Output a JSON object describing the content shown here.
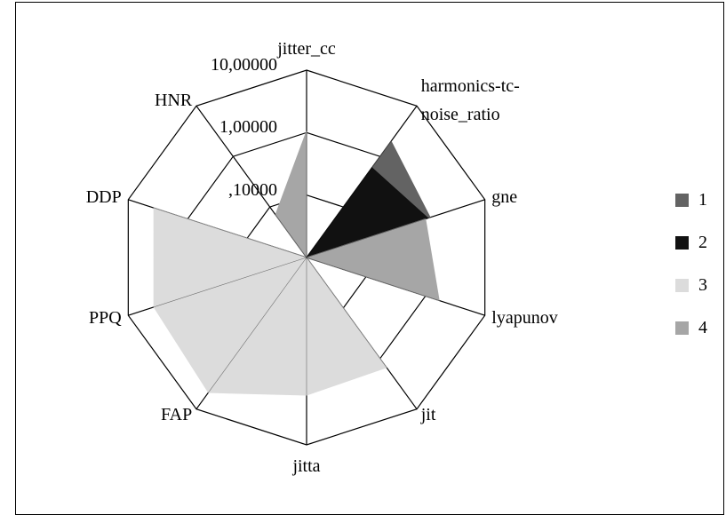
{
  "chart_data": {
    "type": "radar",
    "categories": [
      "jitter_cc",
      "harmonics-tc-noise_ratio",
      "gne",
      "lyapunov",
      "jit",
      "jitta",
      "FAP",
      "PPQ",
      "DDP",
      "HNR"
    ],
    "log_scale": true,
    "ylim": [
      0.01,
      10
    ],
    "yticks": [
      {
        "value": 10,
        "label": "10,00000"
      },
      {
        "value": 1,
        "label": "1,00000"
      },
      {
        "value": 0.1,
        "label": ",10000"
      }
    ],
    "series": [
      {
        "name": "1",
        "color": "#636363",
        "values": [
          0.01,
          2.0,
          1.2,
          0.01,
          0.01,
          0.01,
          0.01,
          0.01,
          0.01,
          0.01
        ]
      },
      {
        "name": "2",
        "color": "#111111",
        "values": [
          0.01,
          0.6,
          1.1,
          0.01,
          0.01,
          0.01,
          0.01,
          0.01,
          0.01,
          0.01
        ]
      },
      {
        "name": "3",
        "color": "#dcdcdc",
        "values": [
          0.01,
          0.01,
          0.01,
          0.01,
          1.5,
          1.6,
          4.7,
          3.7,
          3.7,
          0.01
        ]
      },
      {
        "name": "4",
        "color": "#a6a6a6",
        "values": [
          1.05,
          0.01,
          1.0,
          1.7,
          0.01,
          0.01,
          0.01,
          0.01,
          0.01,
          0.07
        ]
      }
    ]
  }
}
